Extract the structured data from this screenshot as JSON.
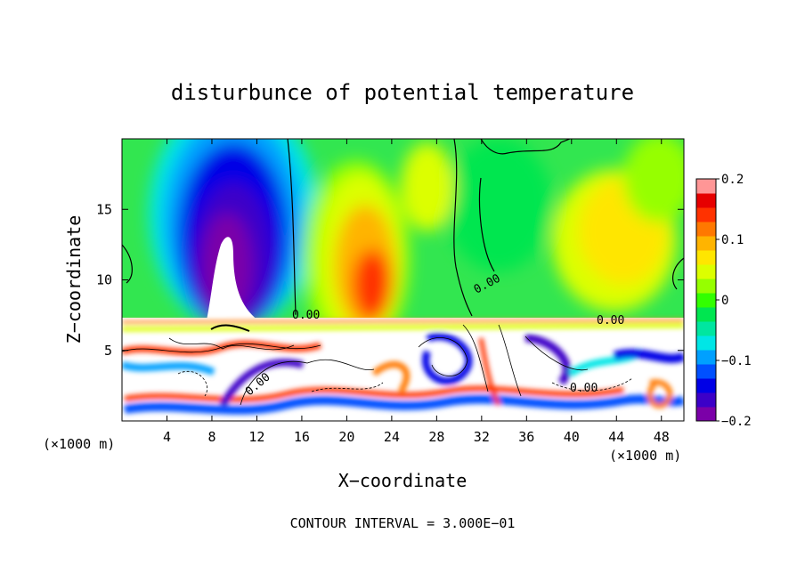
{
  "chart_data": {
    "type": "heatmap",
    "title": "disturbunce of potential temperature",
    "xlabel": "X−coordinate",
    "ylabel": "Z−coordinate",
    "x_unit_left": "(×1000 m)",
    "x_unit_right": "(×1000 m)",
    "footer": "CONTOUR INTERVAL = 3.000E−01",
    "xlim": [
      0,
      50
    ],
    "ylim": [
      0,
      20
    ],
    "x_ticks": [
      4,
      8,
      12,
      16,
      20,
      24,
      28,
      32,
      36,
      40,
      44,
      48
    ],
    "y_ticks": [
      5,
      10,
      15
    ],
    "colorbar": {
      "range": [
        -0.2,
        0.2
      ],
      "tick_values": [
        0.2,
        0.1,
        0,
        -0.1,
        -0.2
      ],
      "tick_labels": [
        "0.2",
        "0.1",
        "0",
        "−0.1",
        "−0.2"
      ],
      "colors": [
        "#7b00a8",
        "#3c00c8",
        "#0000e6",
        "#0050ff",
        "#00a0ff",
        "#00e6e6",
        "#00e6a0",
        "#00e650",
        "#32ff00",
        "#96ff00",
        "#dcff00",
        "#ffe600",
        "#ffb400",
        "#ff7800",
        "#ff3200",
        "#e60000",
        "#ff9696"
      ]
    },
    "contour_labels": [
      "0.00",
      "0.00",
      "0.00",
      "0.00",
      "0.00"
    ]
  }
}
